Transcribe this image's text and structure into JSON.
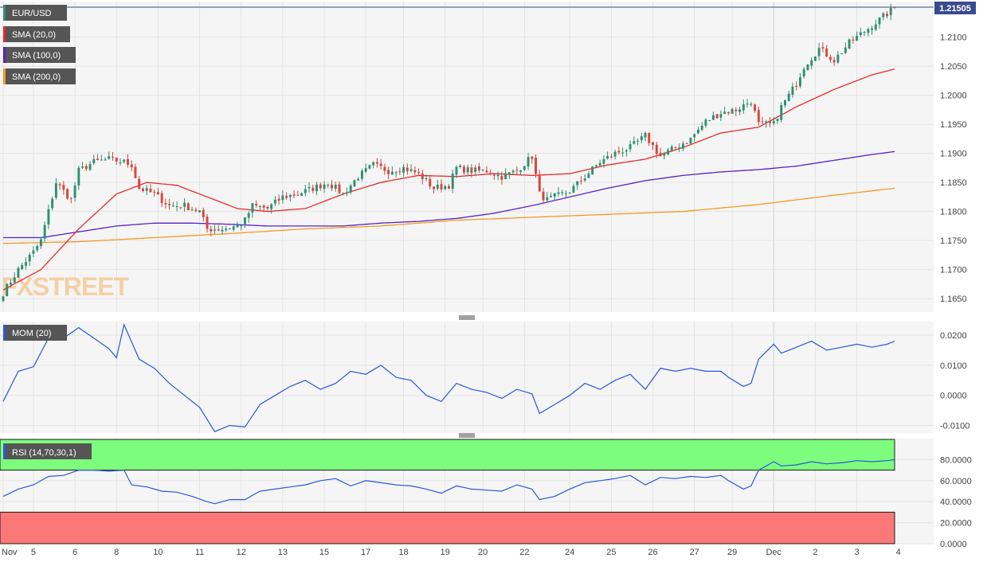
{
  "symbol": "EUR/USD",
  "last_price_label": "1.21505",
  "watermark": "FXSTREET",
  "colors": {
    "panel_bg": "#f5f5f5",
    "grid": "#e3e3e3",
    "axis_text": "#444444",
    "up": "#2f8f72",
    "down": "#d9453c",
    "sma20": "#e8292a",
    "sma100": "#5a1fc9",
    "sma200": "#f59a23",
    "mom": "#2a57d8",
    "rsi": "#2a57d8",
    "overbought_zone": "#7dfc7d",
    "oversold_zone": "#fc7878",
    "label_bg": "#555555",
    "price_line": "#3a4b8c"
  },
  "indicators": {
    "sma20_label": "SMA (20,0)",
    "sma100_label": "SMA (100,0)",
    "sma200_label": "SMA (200,0)",
    "mom_label": "MOM (20)",
    "rsi_label": "RSI (14,70,30,1)"
  },
  "x_axis": {
    "labels": [
      "Nov",
      "5",
      "6",
      "8",
      "10",
      "11",
      "12",
      "13",
      "15",
      "17",
      "18",
      "19",
      "20",
      "22",
      "24",
      "25",
      "26",
      "27",
      "29",
      "Dec",
      "2",
      "3",
      "4"
    ],
    "label_bar_index": [
      0,
      8,
      19,
      30,
      41,
      52,
      63,
      74,
      85,
      96,
      106,
      117,
      127,
      138,
      150,
      161,
      172,
      183,
      193,
      204,
      215,
      226,
      237
    ]
  },
  "price_axis": {
    "ticks": [
      "1.2100",
      "1.2050",
      "1.2000",
      "1.1950",
      "1.1900",
      "1.1850",
      "1.1800",
      "1.1750",
      "1.1700",
      "1.1650"
    ],
    "range": [
      1.1627,
      1.2161
    ]
  },
  "mom_axis": {
    "ticks": [
      "0.0200",
      "0.0100",
      "0.0000",
      "-0.0100"
    ],
    "range": [
      -0.0125,
      0.0245
    ]
  },
  "rsi_axis": {
    "ticks": [
      "80.0000",
      "60.0000",
      "40.0000",
      "20.0000",
      "0.0000"
    ],
    "range": [
      0,
      100
    ],
    "overbought": 70,
    "oversold": 30
  },
  "chart_data": {
    "type": "candlestick",
    "title": "EUR/USD",
    "last_price": 1.21505,
    "x_tick_labels": [
      "Nov",
      "5",
      "6",
      "8",
      "10",
      "11",
      "12",
      "13",
      "15",
      "17",
      "18",
      "19",
      "20",
      "22",
      "24",
      "25",
      "26",
      "27",
      "29",
      "Dec",
      "2",
      "3",
      "4"
    ],
    "price_ylim": [
      1.1627,
      1.2161
    ],
    "price_anchors": [
      [
        0,
        1.166
      ],
      [
        4,
        1.17
      ],
      [
        8,
        1.173
      ],
      [
        10,
        1.175
      ],
      [
        12,
        1.18
      ],
      [
        14,
        1.185
      ],
      [
        18,
        1.182
      ],
      [
        20,
        1.187
      ],
      [
        24,
        1.1885
      ],
      [
        28,
        1.189
      ],
      [
        32,
        1.1885
      ],
      [
        34,
        1.188
      ],
      [
        36,
        1.184
      ],
      [
        40,
        1.183
      ],
      [
        44,
        1.181
      ],
      [
        48,
        1.181
      ],
      [
        52,
        1.18
      ],
      [
        54,
        1.177
      ],
      [
        58,
        1.177
      ],
      [
        62,
        1.1775
      ],
      [
        64,
        1.1785
      ],
      [
        66,
        1.181
      ],
      [
        70,
        1.1805
      ],
      [
        74,
        1.1825
      ],
      [
        78,
        1.183
      ],
      [
        82,
        1.184
      ],
      [
        86,
        1.185
      ],
      [
        90,
        1.183
      ],
      [
        94,
        1.186
      ],
      [
        98,
        1.188
      ],
      [
        102,
        1.187
      ],
      [
        106,
        1.1875
      ],
      [
        110,
        1.1865
      ],
      [
        114,
        1.184
      ],
      [
        118,
        1.1845
      ],
      [
        120,
        1.1875
      ],
      [
        124,
        1.187
      ],
      [
        128,
        1.187
      ],
      [
        132,
        1.186
      ],
      [
        136,
        1.187
      ],
      [
        140,
        1.1895
      ],
      [
        142,
        1.183
      ],
      [
        144,
        1.182
      ],
      [
        150,
        1.1835
      ],
      [
        154,
        1.186
      ],
      [
        158,
        1.1885
      ],
      [
        162,
        1.19
      ],
      [
        166,
        1.191
      ],
      [
        170,
        1.193
      ],
      [
        174,
        1.1895
      ],
      [
        178,
        1.191
      ],
      [
        182,
        1.1925
      ],
      [
        186,
        1.1955
      ],
      [
        190,
        1.197
      ],
      [
        194,
        1.1975
      ],
      [
        198,
        1.199
      ],
      [
        200,
        1.195
      ],
      [
        204,
        1.195
      ],
      [
        206,
        1.198
      ],
      [
        210,
        1.202
      ],
      [
        212,
        1.205
      ],
      [
        216,
        1.208
      ],
      [
        220,
        1.206
      ],
      [
        224,
        1.209
      ],
      [
        228,
        1.211
      ],
      [
        232,
        1.213
      ],
      [
        236,
        1.215
      ]
    ],
    "sma20": [
      [
        0,
        1.1665
      ],
      [
        10,
        1.17
      ],
      [
        20,
        1.177
      ],
      [
        30,
        1.183
      ],
      [
        38,
        1.185
      ],
      [
        46,
        1.1845
      ],
      [
        54,
        1.1825
      ],
      [
        62,
        1.1805
      ],
      [
        70,
        1.18
      ],
      [
        80,
        1.1805
      ],
      [
        90,
        1.183
      ],
      [
        100,
        1.185
      ],
      [
        110,
        1.1862
      ],
      [
        120,
        1.186
      ],
      [
        130,
        1.1865
      ],
      [
        140,
        1.1862
      ],
      [
        150,
        1.1865
      ],
      [
        160,
        1.188
      ],
      [
        170,
        1.189
      ],
      [
        180,
        1.191
      ],
      [
        190,
        1.1935
      ],
      [
        200,
        1.1945
      ],
      [
        210,
        1.198
      ],
      [
        220,
        1.201
      ],
      [
        230,
        1.2035
      ],
      [
        236,
        1.2045
      ]
    ],
    "sma100": [
      [
        0,
        1.1755
      ],
      [
        10,
        1.1755
      ],
      [
        20,
        1.1765
      ],
      [
        30,
        1.1775
      ],
      [
        40,
        1.178
      ],
      [
        50,
        1.178
      ],
      [
        60,
        1.1778
      ],
      [
        70,
        1.1775
      ],
      [
        80,
        1.1775
      ],
      [
        90,
        1.1775
      ],
      [
        100,
        1.178
      ],
      [
        110,
        1.1783
      ],
      [
        120,
        1.1788
      ],
      [
        130,
        1.1797
      ],
      [
        140,
        1.181
      ],
      [
        150,
        1.1825
      ],
      [
        160,
        1.184
      ],
      [
        170,
        1.1853
      ],
      [
        180,
        1.1862
      ],
      [
        190,
        1.1868
      ],
      [
        200,
        1.1872
      ],
      [
        210,
        1.1878
      ],
      [
        220,
        1.1888
      ],
      [
        230,
        1.1898
      ],
      [
        236,
        1.1903
      ]
    ],
    "sma200": [
      [
        0,
        1.1745
      ],
      [
        20,
        1.1748
      ],
      [
        40,
        1.1755
      ],
      [
        60,
        1.1762
      ],
      [
        80,
        1.177
      ],
      [
        100,
        1.1775
      ],
      [
        120,
        1.1785
      ],
      [
        140,
        1.179
      ],
      [
        160,
        1.1795
      ],
      [
        180,
        1.18
      ],
      [
        200,
        1.1812
      ],
      [
        220,
        1.1828
      ],
      [
        236,
        1.184
      ]
    ],
    "momentum": {
      "ylim": [
        -0.0125,
        0.0245
      ],
      "anchors": [
        [
          0,
          -0.002
        ],
        [
          4,
          0.008
        ],
        [
          8,
          0.0095
        ],
        [
          12,
          0.019
        ],
        [
          16,
          0.019
        ],
        [
          20,
          0.0225
        ],
        [
          24,
          0.019
        ],
        [
          28,
          0.0155
        ],
        [
          30,
          0.0125
        ],
        [
          32,
          0.0235
        ],
        [
          36,
          0.012
        ],
        [
          40,
          0.009
        ],
        [
          44,
          0.004
        ],
        [
          48,
          0.0
        ],
        [
          52,
          -0.004
        ],
        [
          56,
          -0.012
        ],
        [
          60,
          -0.01
        ],
        [
          64,
          -0.0105
        ],
        [
          68,
          -0.003
        ],
        [
          72,
          0.0
        ],
        [
          76,
          0.003
        ],
        [
          80,
          0.005
        ],
        [
          84,
          0.002
        ],
        [
          88,
          0.004
        ],
        [
          92,
          0.008
        ],
        [
          96,
          0.007
        ],
        [
          100,
          0.01
        ],
        [
          104,
          0.006
        ],
        [
          108,
          0.005
        ],
        [
          112,
          0.0
        ],
        [
          116,
          -0.002
        ],
        [
          120,
          0.004
        ],
        [
          124,
          0.002
        ],
        [
          128,
          0.001
        ],
        [
          132,
          -0.001
        ],
        [
          136,
          0.002
        ],
        [
          140,
          0.0005
        ],
        [
          142,
          -0.006
        ],
        [
          146,
          -0.003
        ],
        [
          150,
          0.0
        ],
        [
          154,
          0.004
        ],
        [
          158,
          0.002
        ],
        [
          162,
          0.005
        ],
        [
          166,
          0.007
        ],
        [
          170,
          0.002
        ],
        [
          174,
          0.009
        ],
        [
          178,
          0.008
        ],
        [
          182,
          0.009
        ],
        [
          186,
          0.008
        ],
        [
          190,
          0.008
        ],
        [
          192,
          0.006
        ],
        [
          196,
          0.003
        ],
        [
          198,
          0.004
        ],
        [
          200,
          0.012
        ],
        [
          204,
          0.017
        ],
        [
          206,
          0.014
        ],
        [
          210,
          0.016
        ],
        [
          214,
          0.018
        ],
        [
          218,
          0.015
        ],
        [
          222,
          0.016
        ],
        [
          226,
          0.017
        ],
        [
          230,
          0.016
        ],
        [
          234,
          0.017
        ],
        [
          236,
          0.018
        ]
      ]
    },
    "rsi": {
      "ylim": [
        0,
        100
      ],
      "overbought": 70,
      "oversold": 30,
      "anchors": [
        [
          0,
          45
        ],
        [
          4,
          52
        ],
        [
          8,
          56
        ],
        [
          12,
          64
        ],
        [
          16,
          65
        ],
        [
          20,
          70
        ],
        [
          24,
          70
        ],
        [
          28,
          69
        ],
        [
          32,
          70
        ],
        [
          34,
          56
        ],
        [
          38,
          54
        ],
        [
          42,
          50
        ],
        [
          46,
          49
        ],
        [
          50,
          45
        ],
        [
          54,
          40
        ],
        [
          56,
          38
        ],
        [
          60,
          42
        ],
        [
          64,
          42
        ],
        [
          68,
          50
        ],
        [
          72,
          52
        ],
        [
          76,
          54
        ],
        [
          80,
          56
        ],
        [
          84,
          60
        ],
        [
          88,
          62
        ],
        [
          92,
          55
        ],
        [
          96,
          60
        ],
        [
          100,
          58
        ],
        [
          104,
          56
        ],
        [
          108,
          55
        ],
        [
          112,
          52
        ],
        [
          116,
          48
        ],
        [
          120,
          55
        ],
        [
          124,
          52
        ],
        [
          128,
          51
        ],
        [
          132,
          50
        ],
        [
          136,
          56
        ],
        [
          140,
          52
        ],
        [
          142,
          42
        ],
        [
          146,
          45
        ],
        [
          150,
          52
        ],
        [
          154,
          58
        ],
        [
          158,
          60
        ],
        [
          162,
          62
        ],
        [
          166,
          65
        ],
        [
          170,
          56
        ],
        [
          174,
          63
        ],
        [
          178,
          62
        ],
        [
          182,
          64
        ],
        [
          186,
          63
        ],
        [
          190,
          65
        ],
        [
          192,
          60
        ],
        [
          196,
          52
        ],
        [
          198,
          55
        ],
        [
          200,
          70
        ],
        [
          204,
          78
        ],
        [
          206,
          74
        ],
        [
          210,
          75
        ],
        [
          214,
          78
        ],
        [
          218,
          76
        ],
        [
          222,
          77
        ],
        [
          226,
          79
        ],
        [
          230,
          78
        ],
        [
          234,
          79
        ],
        [
          236,
          80
        ]
      ]
    }
  }
}
